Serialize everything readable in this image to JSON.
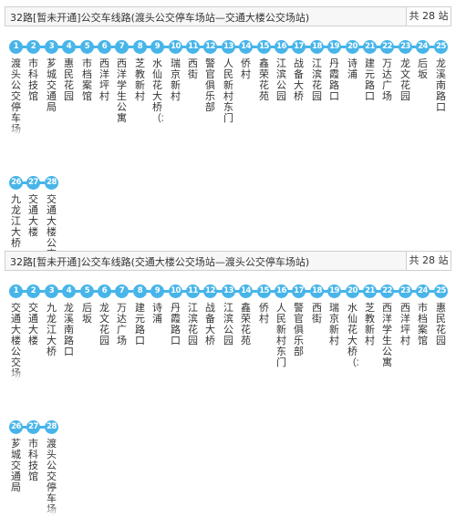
{
  "routes": [
    {
      "title": "32路[暂未开通]公交车线路(渡头公交停车场站—交通大楼公交场站)",
      "stop_count": "共 28 站",
      "stops": [
        {
          "num": "1",
          "name": "渡头公交停车场站"
        },
        {
          "num": "2",
          "name": "市科技馆"
        },
        {
          "num": "3",
          "name": "芗城交通局"
        },
        {
          "num": "4",
          "name": "惠民花园"
        },
        {
          "num": "5",
          "name": "市档案馆"
        },
        {
          "num": "6",
          "name": "西洋坪村"
        },
        {
          "num": "7",
          "name": "西洋学生公寓"
        },
        {
          "num": "8",
          "name": "芝教新村"
        },
        {
          "num": "9",
          "name": "水仙花大桥（北）"
        },
        {
          "num": "10",
          "name": "瑞京新村"
        },
        {
          "num": "11",
          "name": "西街"
        },
        {
          "num": "12",
          "name": "警官俱乐部"
        },
        {
          "num": "13",
          "name": "人民新村东门"
        },
        {
          "num": "14",
          "name": "侨村"
        },
        {
          "num": "15",
          "name": "鑫荣花苑"
        },
        {
          "num": "16",
          "name": "江滨公园"
        },
        {
          "num": "17",
          "name": "战备大桥"
        },
        {
          "num": "18",
          "name": "江滨花园"
        },
        {
          "num": "19",
          "name": "丹霞路口"
        },
        {
          "num": "20",
          "name": "诗浦"
        },
        {
          "num": "21",
          "name": "建元路口"
        },
        {
          "num": "22",
          "name": "万达广场"
        },
        {
          "num": "23",
          "name": "龙文花园"
        },
        {
          "num": "24",
          "name": "后坂"
        },
        {
          "num": "25",
          "name": "龙溪南路口"
        },
        {
          "num": "26",
          "name": "九龙江大桥"
        },
        {
          "num": "27",
          "name": "交通大楼"
        },
        {
          "num": "28",
          "name": "交通大楼公交场站"
        }
      ]
    },
    {
      "title": "32路[暂未开通]公交车线路(交通大楼公交场站—渡头公交停车场站)",
      "stop_count": "共 28 站",
      "stops": [
        {
          "num": "1",
          "name": "交通大楼公交场站"
        },
        {
          "num": "2",
          "name": "交通大楼"
        },
        {
          "num": "3",
          "name": "九龙江大桥"
        },
        {
          "num": "4",
          "name": "龙溪南路口"
        },
        {
          "num": "5",
          "name": "后坂"
        },
        {
          "num": "6",
          "name": "龙文花园"
        },
        {
          "num": "7",
          "name": "万达广场"
        },
        {
          "num": "8",
          "name": "建元路口"
        },
        {
          "num": "9",
          "name": "诗浦"
        },
        {
          "num": "10",
          "name": "丹霞路口"
        },
        {
          "num": "11",
          "name": "江滨花园"
        },
        {
          "num": "12",
          "name": "战备大桥"
        },
        {
          "num": "13",
          "name": "江滨公园"
        },
        {
          "num": "14",
          "name": "鑫荣花苑"
        },
        {
          "num": "15",
          "name": "侨村"
        },
        {
          "num": "16",
          "name": "人民新村东门"
        },
        {
          "num": "17",
          "name": "警官俱乐部"
        },
        {
          "num": "18",
          "name": "西街"
        },
        {
          "num": "19",
          "name": "瑞京新村"
        },
        {
          "num": "20",
          "name": "水仙花大桥（北）"
        },
        {
          "num": "21",
          "name": "芝教新村"
        },
        {
          "num": "22",
          "name": "西洋学生公寓"
        },
        {
          "num": "23",
          "name": "西洋坪村"
        },
        {
          "num": "24",
          "name": "市档案馆"
        },
        {
          "num": "25",
          "name": "惠民花园"
        },
        {
          "num": "26",
          "name": "芗城交通局"
        },
        {
          "num": "27",
          "name": "市科技馆"
        },
        {
          "num": "28",
          "name": "渡头公交停车场站"
        }
      ]
    }
  ],
  "colors": {
    "badge": "#47b5e9",
    "header_bg": "#f7f7f7",
    "border": "#d0d0d0"
  }
}
